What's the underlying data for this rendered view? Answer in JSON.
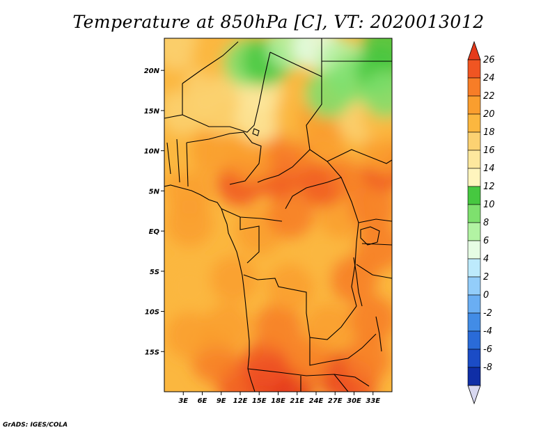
{
  "title": "Temperature at 850hPa [C], VT: 2020013012",
  "credit": "GrADS: IGES/COLA",
  "map": {
    "lon_range": [
      0,
      36
    ],
    "lat_range": [
      -20,
      24
    ],
    "lat_ticks": [
      {
        "v": 20,
        "label": "20N"
      },
      {
        "v": 15,
        "label": "15N"
      },
      {
        "v": 10,
        "label": "10N"
      },
      {
        "v": 5,
        "label": "5N"
      },
      {
        "v": 0,
        "label": "EQ"
      },
      {
        "v": -5,
        "label": "5S"
      },
      {
        "v": -10,
        "label": "10S"
      },
      {
        "v": -15,
        "label": "15S"
      }
    ],
    "lon_ticks": [
      {
        "v": 3,
        "label": "3E"
      },
      {
        "v": 6,
        "label": "6E"
      },
      {
        "v": 9,
        "label": "9E"
      },
      {
        "v": 12,
        "label": "12E"
      },
      {
        "v": 15,
        "label": "15E"
      },
      {
        "v": 18,
        "label": "18E"
      },
      {
        "v": 21,
        "label": "21E"
      },
      {
        "v": 24,
        "label": "24E"
      },
      {
        "v": 27,
        "label": "27E"
      },
      {
        "v": 30,
        "label": "30E"
      },
      {
        "v": 33,
        "label": "33E"
      }
    ]
  },
  "colorbar": {
    "labels": [
      "26",
      "24",
      "22",
      "20",
      "18",
      "16",
      "14",
      "12",
      "10",
      "8",
      "6",
      "4",
      "2",
      "0",
      "-2",
      "-4",
      "-6",
      "-8"
    ],
    "colors_top_to_bottom": [
      "#e53a1b",
      "#f05522",
      "#f77d27",
      "#fa9e2e",
      "#fbb73f",
      "#fcd272",
      "#fde89e",
      "#fff5be",
      "#46c840",
      "#7ee06e",
      "#b2f3a3",
      "#e6fde4",
      "#bdeafc",
      "#93cdfa",
      "#6aaef3",
      "#428ce6",
      "#2a6bd8",
      "#1b4cc6",
      "#0f2ea6",
      "#050e78"
    ]
  },
  "contours": [
    {
      "lon": 12,
      "lat": -19,
      "color": "#f05522"
    },
    {
      "lon": 17,
      "lat": -18.5,
      "color": "#e53a1b"
    },
    {
      "lon": 20,
      "lat": -19.5,
      "color": "#e53a1b"
    },
    {
      "lon": 28,
      "lat": -18,
      "color": "#e53a1b"
    },
    {
      "lon": 30,
      "lat": -19,
      "color": "#f05522"
    },
    {
      "lon": 8,
      "lat": -16,
      "color": "#f77d27"
    },
    {
      "lon": 16,
      "lat": -16.5,
      "color": "#f05522"
    },
    {
      "lon": 23,
      "lat": -16,
      "color": "#f77d27"
    },
    {
      "lon": 32,
      "lat": -16,
      "color": "#f77d27"
    },
    {
      "lon": 4,
      "lat": -13,
      "color": "#fa9e2e"
    },
    {
      "lon": 10,
      "lat": -12,
      "color": "#fa9e2e"
    },
    {
      "lon": 18,
      "lat": -12,
      "color": "#f77d27"
    },
    {
      "lon": 26,
      "lat": -12,
      "color": "#fa9e2e"
    },
    {
      "lon": 33,
      "lat": -11,
      "color": "#f77d27"
    },
    {
      "lon": 4,
      "lat": -7,
      "color": "#fbb73f"
    },
    {
      "lon": 11,
      "lat": -6,
      "color": "#fa9e2e"
    },
    {
      "lon": 20,
      "lat": -7,
      "color": "#fa9e2e"
    },
    {
      "lon": 25,
      "lat": -3,
      "color": "#fbb73f"
    },
    {
      "lon": 30,
      "lat": -6,
      "color": "#f77d27"
    },
    {
      "lon": 34,
      "lat": -2,
      "color": "#f77d27"
    },
    {
      "lon": 4,
      "lat": 1,
      "color": "#fa9e2e"
    },
    {
      "lon": 15,
      "lat": 0,
      "color": "#fa9e2e"
    },
    {
      "lon": 20,
      "lat": 2,
      "color": "#f77d27"
    },
    {
      "lon": 28,
      "lat": 2,
      "color": "#fa9e2e"
    },
    {
      "lon": 33,
      "lat": 3,
      "color": "#f77d27"
    },
    {
      "lon": 4,
      "lat": 5,
      "color": "#fa9e2e"
    },
    {
      "lon": 12,
      "lat": 6,
      "color": "#f05522"
    },
    {
      "lon": 18,
      "lat": 7,
      "color": "#f05522"
    },
    {
      "lon": 25,
      "lat": 6,
      "color": "#f05522"
    },
    {
      "lon": 30,
      "lat": 7,
      "color": "#f77d27"
    },
    {
      "lon": 35,
      "lat": 8,
      "color": "#f05522"
    },
    {
      "lon": 3,
      "lat": 10,
      "color": "#fbb73f"
    },
    {
      "lon": 8,
      "lat": 10,
      "color": "#fa9e2e"
    },
    {
      "lon": 14,
      "lat": 9,
      "color": "#fa9e2e"
    },
    {
      "lon": 20,
      "lat": 10,
      "color": "#f77d27"
    },
    {
      "lon": 26,
      "lat": 11,
      "color": "#fa9e2e"
    },
    {
      "lon": 32,
      "lat": 11,
      "color": "#fbb73f"
    },
    {
      "lon": 35,
      "lat": 10,
      "color": "#fa9e2e"
    },
    {
      "lon": 3,
      "lat": 15,
      "color": "#fcd272"
    },
    {
      "lon": 9,
      "lat": 15,
      "color": "#fcd272"
    },
    {
      "lon": 15,
      "lat": 14,
      "color": "#fde89e"
    },
    {
      "lon": 21,
      "lat": 14,
      "color": "#fbb73f"
    },
    {
      "lon": 25,
      "lat": 14,
      "color": "#fa9e2e"
    },
    {
      "lon": 31,
      "lat": 14,
      "color": "#fcd272"
    },
    {
      "lon": 35,
      "lat": 14,
      "color": "#fbb73f"
    },
    {
      "lon": 3,
      "lat": 20,
      "color": "#fbb73f"
    },
    {
      "lon": 7,
      "lat": 18,
      "color": "#fcd272"
    },
    {
      "lon": 12,
      "lat": 19,
      "color": "#fcd272"
    },
    {
      "lon": 15,
      "lat": 18,
      "color": "#fde89e"
    },
    {
      "lon": 2,
      "lat": 23,
      "color": "#fcd272"
    },
    {
      "lon": 8,
      "lat": 22,
      "color": "#fbb73f"
    },
    {
      "lon": 13,
      "lat": 21,
      "color": "#7ee06e"
    },
    {
      "lon": 16,
      "lat": 21,
      "color": "#46c840"
    },
    {
      "lon": 20,
      "lat": 23,
      "color": "#b2f3a3"
    },
    {
      "lon": 24,
      "lat": 23,
      "color": "#e6fde4"
    },
    {
      "lon": 28,
      "lat": 21,
      "color": "#b2f3a3"
    },
    {
      "lon": 30,
      "lat": 19,
      "color": "#7ee06e"
    },
    {
      "lon": 34,
      "lat": 20,
      "color": "#46c840"
    },
    {
      "lon": 35,
      "lat": 17,
      "color": "#7ee06e"
    },
    {
      "lon": 26,
      "lat": 17,
      "color": "#7ee06e"
    },
    {
      "lon": 35,
      "lat": 23,
      "color": "#46c840"
    }
  ]
}
